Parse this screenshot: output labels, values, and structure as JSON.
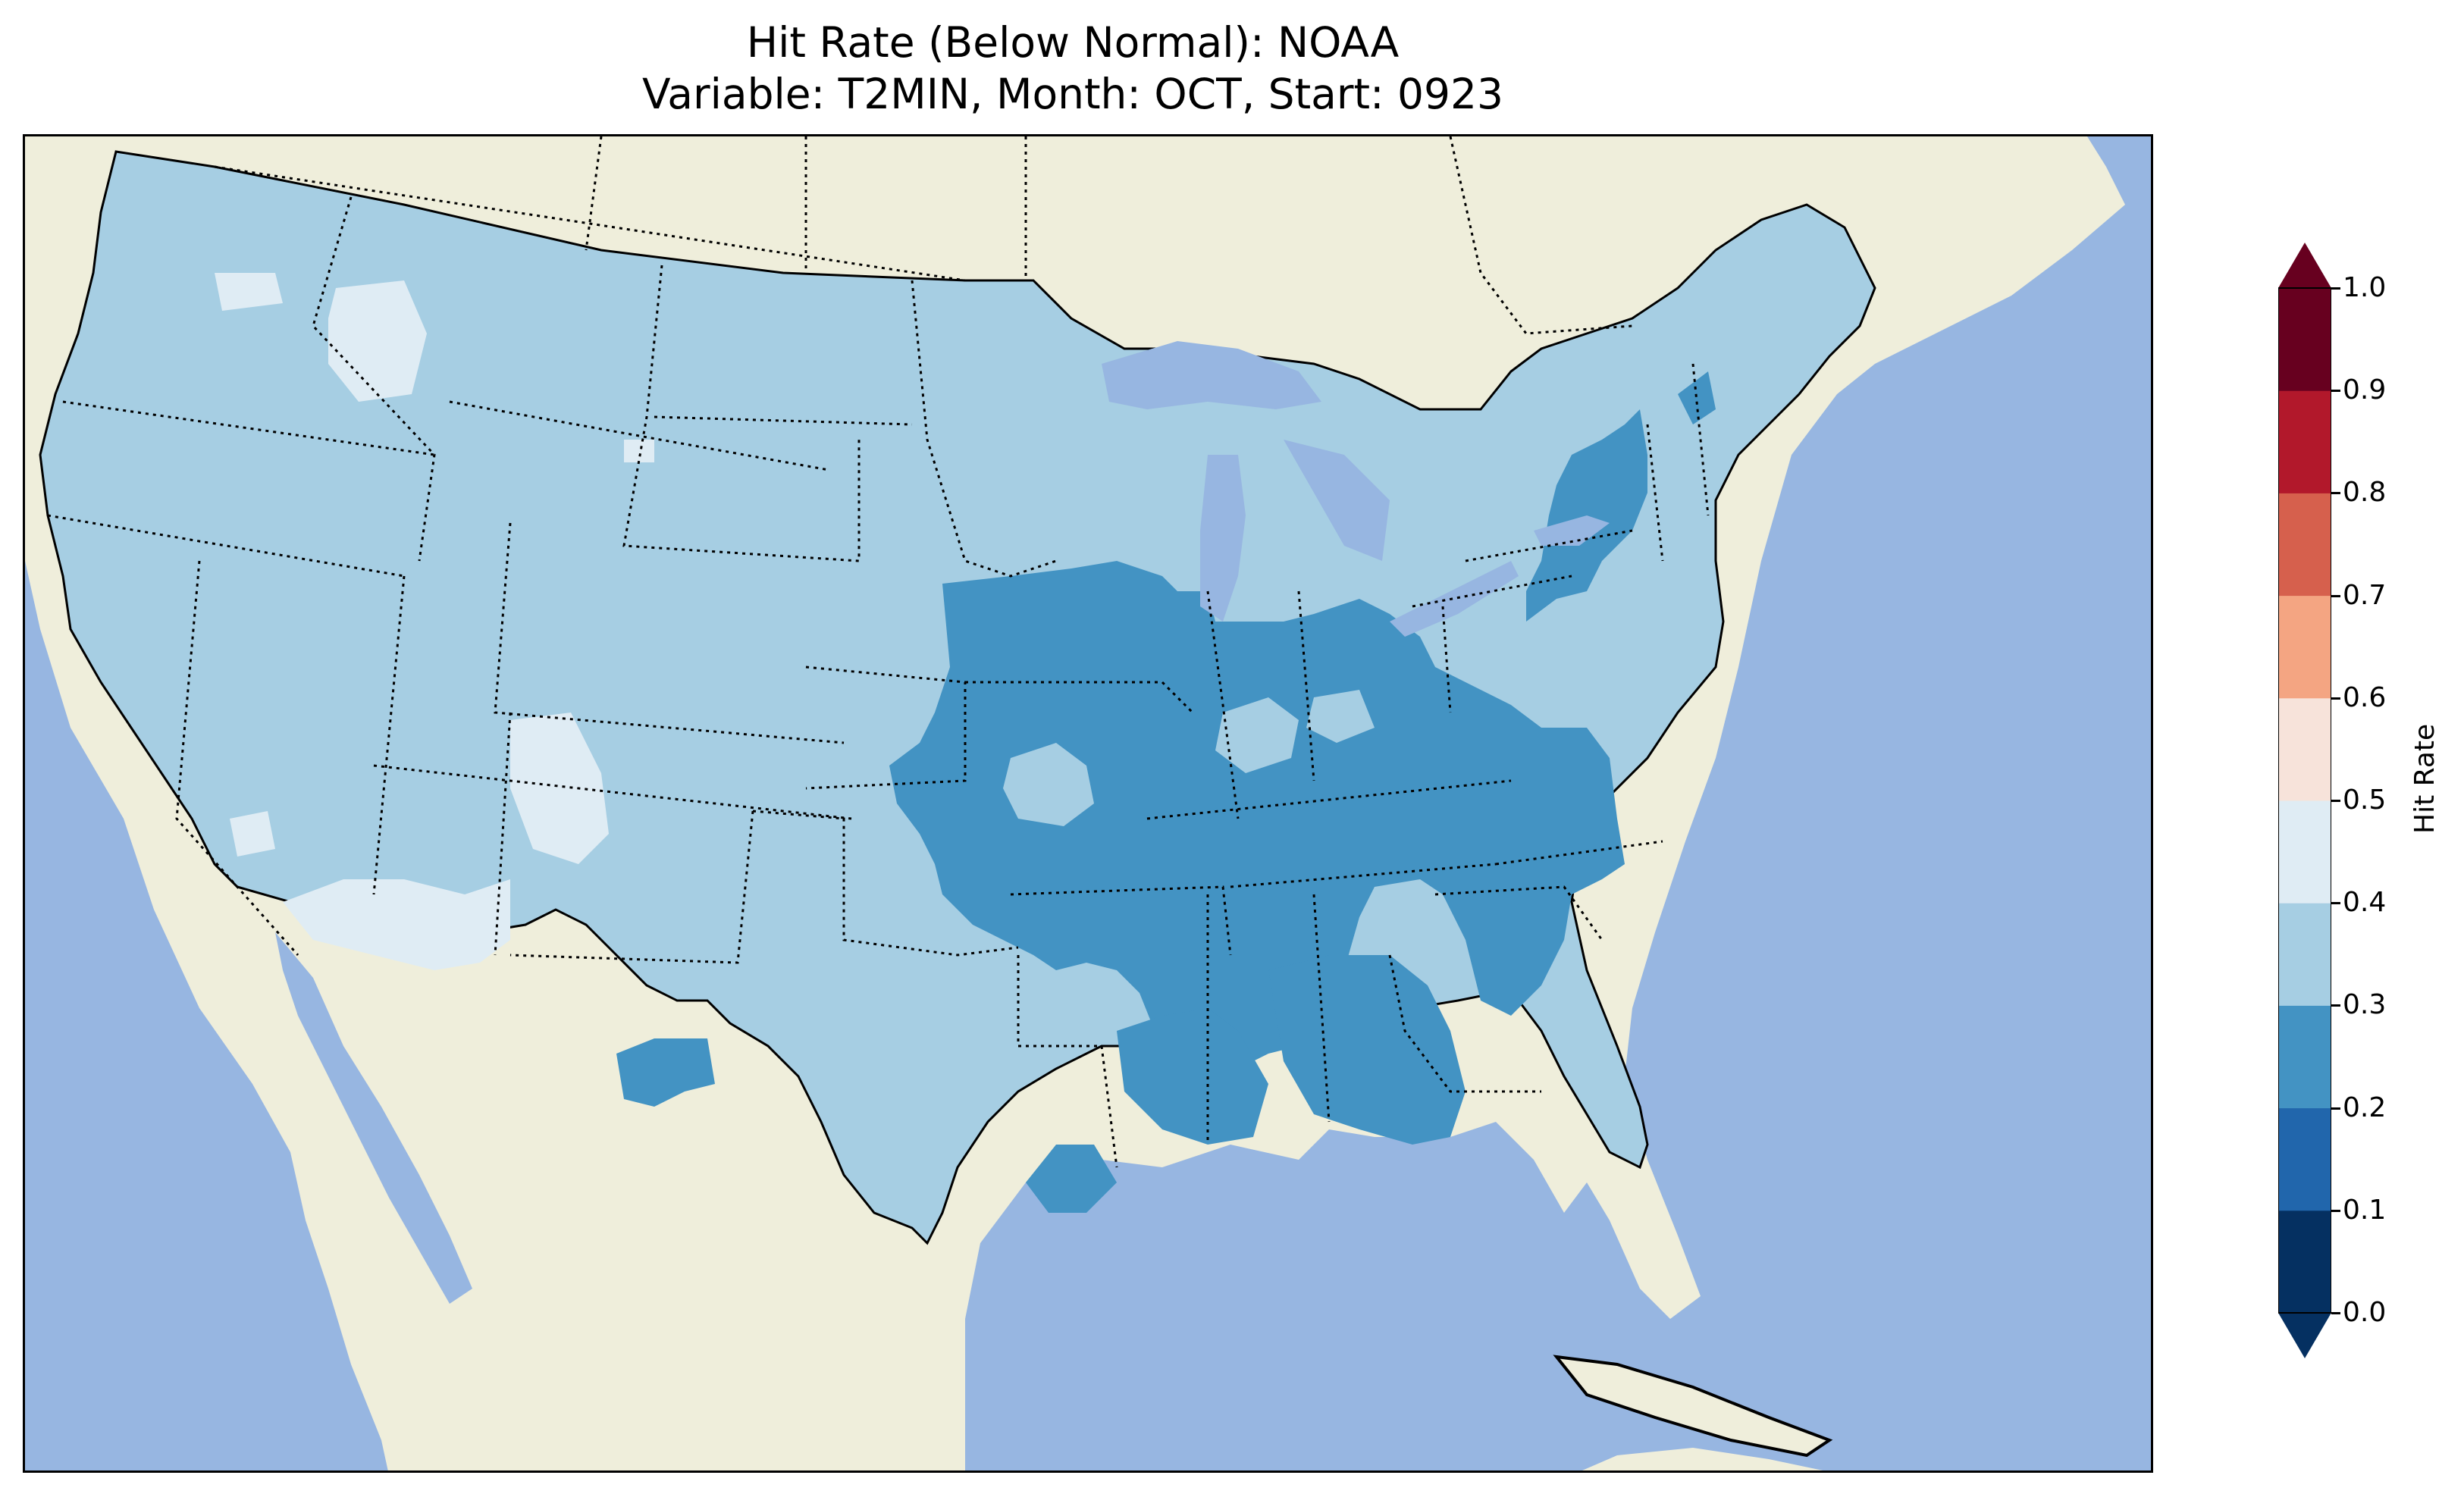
{
  "title": {
    "line1": "Hit Rate (Below Normal): NOAA",
    "line2": "Variable: T2MIN, Month: OCT, Start: 0923"
  },
  "colors": {
    "ocean": "#97b6e1",
    "land": "#efeedb",
    "lakes": "#97b6e1"
  },
  "colorbar": {
    "label": "Hit Rate",
    "ticks": [
      "0.0",
      "0.1",
      "0.2",
      "0.3",
      "0.4",
      "0.5",
      "0.6",
      "0.7",
      "0.8",
      "0.9",
      "1.0"
    ],
    "bins": [
      {
        "range": [
          0.0,
          0.1
        ],
        "color": "#053061"
      },
      {
        "range": [
          0.1,
          0.2
        ],
        "color": "#2166ac"
      },
      {
        "range": [
          0.2,
          0.3
        ],
        "color": "#4393c3"
      },
      {
        "range": [
          0.3,
          0.4
        ],
        "color": "#a6cee3"
      },
      {
        "range": [
          0.4,
          0.5
        ],
        "color": "#dfecf4"
      },
      {
        "range": [
          0.5,
          0.6
        ],
        "color": "#f7e3da"
      },
      {
        "range": [
          0.6,
          0.7
        ],
        "color": "#f4a582"
      },
      {
        "range": [
          0.7,
          0.8
        ],
        "color": "#d6604d"
      },
      {
        "range": [
          0.8,
          0.9
        ],
        "color": "#b2182b"
      },
      {
        "range": [
          0.9,
          1.0
        ],
        "color": "#67001f"
      }
    ],
    "extend": "both"
  },
  "map_fields": {
    "conus_base_value": 0.35,
    "regions": [
      {
        "name": "midwest-east-band",
        "value": 0.25
      },
      {
        "name": "northeast-band",
        "value": 0.25
      },
      {
        "name": "southeast-band",
        "value": 0.25
      },
      {
        "name": "ohio-valley-band",
        "value": 0.25
      },
      {
        "name": "west-texas-spot",
        "value": 0.25
      },
      {
        "name": "louisiana-spot",
        "value": 0.25
      },
      {
        "name": "idaho-high",
        "value": 0.45
      },
      {
        "name": "socal-arizona-high",
        "value": 0.45
      },
      {
        "name": "colorado-plateau-high",
        "value": 0.45
      },
      {
        "name": "oregon-high",
        "value": 0.45
      },
      {
        "name": "missouri-pocket",
        "value": 0.35
      },
      {
        "name": "indiana-pocket",
        "value": 0.35
      }
    ]
  }
}
